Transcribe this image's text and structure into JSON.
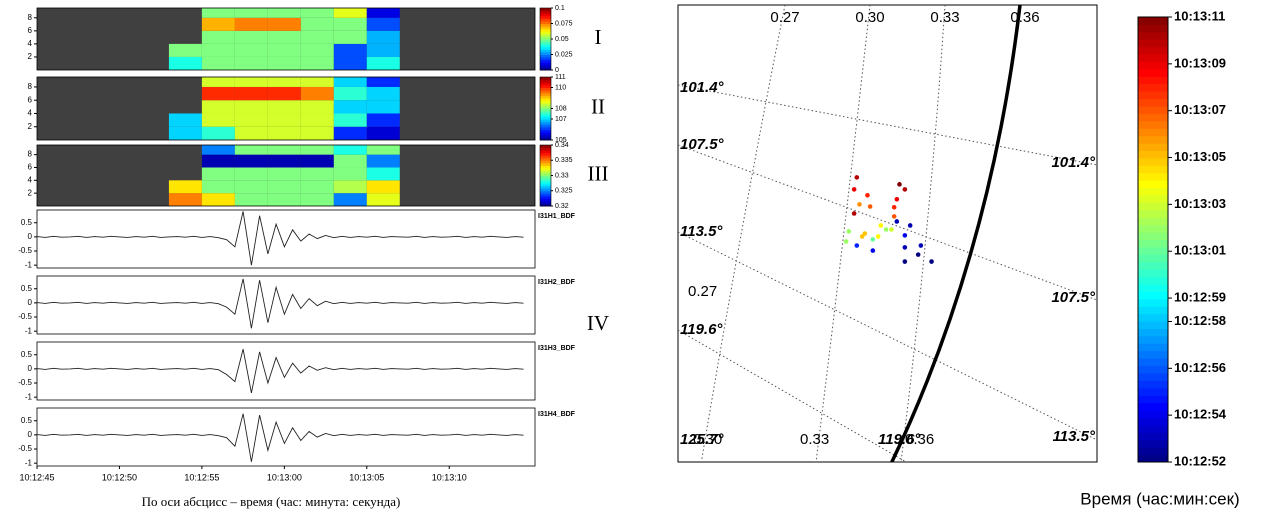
{
  "chart_data": [
    {
      "type": "heatmap",
      "annotation": "I",
      "xlim": [
        45,
        75.2
      ],
      "ylim": [
        0,
        9.5
      ],
      "yticks": [
        2,
        4,
        6,
        8
      ],
      "x_bins": [
        45,
        47,
        49,
        51,
        53,
        55,
        57,
        59,
        61,
        63,
        65,
        67,
        69,
        71,
        73,
        75
      ],
      "y_bins": [
        0,
        2,
        4,
        6,
        8,
        9.5
      ],
      "clim": [
        0,
        0.1
      ],
      "cticks": [
        0,
        0.025,
        0.05,
        0.075,
        0.1
      ],
      "values": [
        [
          null,
          null,
          null,
          null,
          0.04,
          0.05,
          0.05,
          0.05,
          0.05,
          0.02,
          0.04,
          null,
          null,
          null,
          null
        ],
        [
          null,
          null,
          null,
          null,
          0.05,
          0.05,
          0.05,
          0.05,
          0.05,
          0.02,
          0.03,
          null,
          null,
          null,
          null
        ],
        [
          null,
          null,
          null,
          null,
          null,
          0.05,
          0.05,
          0.05,
          0.05,
          0.05,
          0.03,
          null,
          null,
          null,
          null
        ],
        [
          null,
          null,
          null,
          null,
          null,
          0.07,
          0.075,
          0.075,
          0.05,
          0.05,
          0.02,
          null,
          null,
          null,
          null
        ],
        [
          null,
          null,
          null,
          null,
          null,
          0.05,
          0.05,
          0.05,
          0.05,
          0.06,
          0.01,
          null,
          null,
          null,
          null
        ]
      ]
    },
    {
      "type": "heatmap",
      "annotation": "II",
      "xlim": [
        45,
        75.2
      ],
      "ylim": [
        0,
        9.5
      ],
      "yticks": [
        2,
        4,
        6,
        8
      ],
      "x_bins": [
        45,
        47,
        49,
        51,
        53,
        55,
        57,
        59,
        61,
        63,
        65,
        67,
        69,
        71,
        73,
        75
      ],
      "y_bins": [
        0,
        2,
        4,
        6,
        8,
        9.5
      ],
      "clim": [
        105,
        111
      ],
      "cticks": [
        105,
        107,
        108,
        110,
        111
      ],
      "values": [
        [
          null,
          null,
          null,
          null,
          107,
          107.5,
          108.5,
          108.5,
          108.5,
          106,
          105.5,
          null,
          null,
          null,
          null
        ],
        [
          null,
          null,
          null,
          null,
          107,
          108.5,
          108.5,
          108.5,
          108.5,
          107.5,
          106,
          null,
          null,
          null,
          null
        ],
        [
          null,
          null,
          null,
          null,
          null,
          108.5,
          108.5,
          108.5,
          108.5,
          107,
          107,
          null,
          null,
          null,
          null
        ],
        [
          null,
          null,
          null,
          null,
          null,
          110,
          110,
          110,
          109.5,
          107.5,
          107,
          null,
          null,
          null,
          null
        ],
        [
          null,
          null,
          null,
          null,
          null,
          108.5,
          108.5,
          108.5,
          108.5,
          107,
          106,
          null,
          null,
          null,
          null
        ]
      ]
    },
    {
      "type": "heatmap",
      "annotation": "III",
      "xlim": [
        45,
        75.2
      ],
      "ylim": [
        0,
        9.5
      ],
      "yticks": [
        2,
        4,
        6,
        8
      ],
      "x_bins": [
        45,
        47,
        49,
        51,
        53,
        55,
        57,
        59,
        61,
        63,
        65,
        67,
        69,
        71,
        73,
        75
      ],
      "y_bins": [
        0,
        2,
        4,
        6,
        8,
        9.5
      ],
      "clim": [
        0.32,
        0.34
      ],
      "cticks": [
        0.32,
        0.325,
        0.33,
        0.335,
        0.34
      ],
      "values": [
        [
          null,
          null,
          null,
          null,
          0.335,
          0.333,
          0.33,
          0.33,
          0.33,
          0.325,
          0.332,
          null,
          null,
          null,
          null
        ],
        [
          null,
          null,
          null,
          null,
          0.333,
          0.33,
          0.33,
          0.33,
          0.33,
          0.331,
          0.333,
          null,
          null,
          null,
          null
        ],
        [
          null,
          null,
          null,
          null,
          null,
          0.33,
          0.33,
          0.33,
          0.33,
          0.33,
          0.328,
          null,
          null,
          null,
          null
        ],
        [
          null,
          null,
          null,
          null,
          null,
          0.321,
          0.321,
          0.321,
          0.321,
          0.33,
          0.325,
          null,
          null,
          null,
          null
        ],
        [
          null,
          null,
          null,
          null,
          null,
          0.325,
          0.33,
          0.33,
          0.33,
          0.328,
          0.33,
          null,
          null,
          null,
          null
        ]
      ]
    },
    {
      "type": "line",
      "name": "I31H1_BDF",
      "xlim": [
        45,
        75.2
      ],
      "ylim": [
        -1.1,
        0.95
      ],
      "yticks": [
        0.5,
        0,
        -0.5,
        -1
      ],
      "color": "#222222",
      "x": [
        45,
        45.5,
        46,
        46.5,
        47,
        47.5,
        48,
        48.5,
        49,
        49.5,
        50,
        50.5,
        51,
        51.5,
        52,
        52.5,
        53,
        53.5,
        54,
        54.5,
        55,
        55.5,
        56,
        56.5,
        57,
        57.5,
        58,
        58.5,
        59,
        59.5,
        60,
        60.5,
        61,
        61.5,
        62,
        62.5,
        63,
        63.5,
        64,
        64.5,
        65,
        65.5,
        66,
        66.5,
        67,
        67.5,
        68,
        68.5,
        69,
        69.5,
        70,
        70.5,
        71,
        71.5,
        72,
        72.5,
        73,
        73.5,
        74,
        74.5
      ],
      "values": [
        0.01,
        -0.02,
        0.02,
        -0.01,
        0,
        0.02,
        -0.02,
        0.01,
        -0.01,
        0.02,
        0,
        -0.02,
        0.01,
        -0.01,
        0.02,
        -0.02,
        0,
        0.01,
        -0.01,
        0.02,
        -0.02,
        0.01,
        -0.03,
        -0.1,
        -0.35,
        0.9,
        -1.0,
        0.75,
        -0.6,
        0.45,
        -0.35,
        0.25,
        -0.15,
        0.1,
        -0.06,
        0.05,
        -0.03,
        0.02,
        -0.02,
        0.01,
        -0.01,
        0.02,
        -0.02,
        0.01,
        0,
        -0.01,
        0.02,
        -0.02,
        0.01,
        -0.01,
        0,
        0.02,
        -0.02,
        0.01,
        -0.01,
        0.02,
        0,
        -0.02,
        0.01,
        -0.01
      ]
    },
    {
      "type": "line",
      "name": "I31H2_BDF",
      "annotation": "IV",
      "xlim": [
        45,
        75.2
      ],
      "ylim": [
        -1.1,
        0.95
      ],
      "yticks": [
        0.5,
        0,
        -0.5,
        -1
      ],
      "color": "#222222",
      "x": [
        45,
        45.5,
        46,
        46.5,
        47,
        47.5,
        48,
        48.5,
        49,
        49.5,
        50,
        50.5,
        51,
        51.5,
        52,
        52.5,
        53,
        53.5,
        54,
        54.5,
        55,
        55.5,
        56,
        56.5,
        57,
        57.5,
        58,
        58.5,
        59,
        59.5,
        60,
        60.5,
        61,
        61.5,
        62,
        62.5,
        63,
        63.5,
        64,
        64.5,
        65,
        65.5,
        66,
        66.5,
        67,
        67.5,
        68,
        68.5,
        69,
        69.5,
        70,
        70.5,
        71,
        71.5,
        72,
        72.5,
        73,
        73.5,
        74,
        74.5
      ],
      "values": [
        0.01,
        -0.02,
        0.02,
        -0.01,
        0,
        0.02,
        -0.02,
        0.01,
        -0.01,
        0.02,
        0,
        -0.02,
        0.01,
        -0.01,
        0.02,
        -0.02,
        0,
        0.01,
        -0.01,
        0.02,
        -0.02,
        0.01,
        -0.03,
        -0.15,
        -0.4,
        0.85,
        -0.9,
        0.8,
        -0.7,
        0.55,
        -0.4,
        0.3,
        -0.2,
        0.15,
        -0.1,
        0.06,
        -0.03,
        0.02,
        -0.02,
        0.01,
        -0.01,
        0.02,
        -0.02,
        0.01,
        0,
        -0.01,
        0.02,
        -0.02,
        0.01,
        -0.01,
        0,
        0.02,
        -0.02,
        0.01,
        -0.01,
        0.02,
        0,
        -0.02,
        0.01,
        -0.01
      ]
    },
    {
      "type": "line",
      "name": "I31H3_BDF",
      "xlim": [
        45,
        75.2
      ],
      "ylim": [
        -1.1,
        0.95
      ],
      "yticks": [
        0.5,
        0,
        -0.5,
        -1
      ],
      "color": "#222222",
      "x": [
        45,
        45.5,
        46,
        46.5,
        47,
        47.5,
        48,
        48.5,
        49,
        49.5,
        50,
        50.5,
        51,
        51.5,
        52,
        52.5,
        53,
        53.5,
        54,
        54.5,
        55,
        55.5,
        56,
        56.5,
        57,
        57.5,
        58,
        58.5,
        59,
        59.5,
        60,
        60.5,
        61,
        61.5,
        62,
        62.5,
        63,
        63.5,
        64,
        64.5,
        65,
        65.5,
        66,
        66.5,
        67,
        67.5,
        68,
        68.5,
        69,
        69.5,
        70,
        70.5,
        71,
        71.5,
        72,
        72.5,
        73,
        73.5,
        74,
        74.5
      ],
      "values": [
        0.01,
        -0.02,
        0.02,
        -0.01,
        0,
        0.02,
        -0.02,
        0.01,
        -0.01,
        0.02,
        0,
        -0.02,
        0.01,
        -0.01,
        0.02,
        -0.02,
        0,
        0.01,
        -0.01,
        0.02,
        -0.02,
        0.01,
        -0.03,
        -0.2,
        -0.45,
        0.7,
        -0.85,
        0.6,
        -0.5,
        0.4,
        -0.3,
        0.2,
        -0.15,
        0.1,
        -0.05,
        0.04,
        -0.03,
        0.02,
        -0.02,
        0.01,
        -0.01,
        0.02,
        -0.02,
        0.01,
        0,
        -0.01,
        0.02,
        -0.02,
        0.01,
        -0.01,
        0,
        0.02,
        -0.02,
        0.01,
        -0.01,
        0.02,
        0,
        -0.02,
        0.01,
        -0.01
      ]
    },
    {
      "type": "line",
      "name": "I31H4_BDF",
      "xlim": [
        45,
        75.2
      ],
      "ylim": [
        -1.1,
        0.95
      ],
      "yticks": [
        0.5,
        0,
        -0.5,
        -1
      ],
      "color": "#222222",
      "xticks": [
        {
          "value": 45,
          "label": "10:12:45"
        },
        {
          "value": 50,
          "label": "10:12:50"
        },
        {
          "value": 55,
          "label": "10:12:55"
        },
        {
          "value": 60,
          "label": "10:13:00"
        },
        {
          "value": 65,
          "label": "10:13:05"
        },
        {
          "value": 70,
          "label": "10:13:10"
        }
      ],
      "xlabel": "По оси абсцисс – время (час: минута: секунда)",
      "x": [
        45,
        45.5,
        46,
        46.5,
        47,
        47.5,
        48,
        48.5,
        49,
        49.5,
        50,
        50.5,
        51,
        51.5,
        52,
        52.5,
        53,
        53.5,
        54,
        54.5,
        55,
        55.5,
        56,
        56.5,
        57,
        57.5,
        58,
        58.5,
        59,
        59.5,
        60,
        60.5,
        61,
        61.5,
        62,
        62.5,
        63,
        63.5,
        64,
        64.5,
        65,
        65.5,
        66,
        66.5,
        67,
        67.5,
        68,
        68.5,
        69,
        69.5,
        70,
        70.5,
        71,
        71.5,
        72,
        72.5,
        73,
        73.5,
        74,
        74.5
      ],
      "values": [
        0.01,
        -0.02,
        0.02,
        -0.01,
        0,
        0.02,
        -0.02,
        0.01,
        -0.01,
        0.02,
        0,
        -0.02,
        0.01,
        -0.01,
        0.02,
        -0.02,
        0,
        0.01,
        -0.01,
        0.02,
        -0.02,
        0.01,
        -0.03,
        -0.1,
        -0.4,
        0.75,
        -0.95,
        0.7,
        -0.55,
        0.45,
        -0.3,
        0.25,
        -0.2,
        0.12,
        -0.08,
        0.05,
        -0.03,
        0.02,
        -0.02,
        0.01,
        -0.01,
        0.02,
        -0.02,
        0.01,
        0,
        -0.01,
        0.02,
        -0.02,
        0.01,
        -0.01,
        0,
        0.02,
        -0.02,
        0.01,
        -0.01,
        0.02,
        0,
        -0.02,
        0.01,
        -0.01
      ]
    },
    {
      "type": "scatter",
      "xlim": [
        0.23,
        0.387
      ],
      "ylim": [
        0,
        0.171
      ],
      "grid_labels": [
        "0.27",
        "0.30",
        "0.33",
        "0.36",
        "101.4°",
        "107.5°",
        "113.5°",
        "119.6°",
        "125.7°",
        "0.27",
        "0.30",
        "0.33",
        "119.6°",
        "0.36",
        "101.4°",
        "107.5°",
        "113.5°"
      ],
      "x": [
        0.297,
        0.296,
        0.301,
        0.302,
        0.296,
        0.313,
        0.315,
        0.312,
        0.311,
        0.311,
        0.298,
        0.3,
        0.299,
        0.306,
        0.31,
        0.305,
        0.294,
        0.293,
        0.308,
        0.303,
        0.297,
        0.303,
        0.312,
        0.317,
        0.315,
        0.315,
        0.321,
        0.32,
        0.325,
        0.315
      ],
      "y": [
        0.1065,
        0.102,
        0.0998,
        0.0956,
        0.093,
        0.1039,
        0.102,
        0.0983,
        0.0953,
        0.0919,
        0.0964,
        0.0855,
        0.0844,
        0.0885,
        0.087,
        0.0844,
        0.0863,
        0.0825,
        0.087,
        0.0833,
        0.081,
        0.0791,
        0.09,
        0.0885,
        0.0848,
        0.0803,
        0.081,
        0.0776,
        0.075,
        0.075
      ],
      "c": [
        70,
        69,
        68,
        67,
        70,
        71,
        70,
        69,
        68,
        67,
        66,
        65,
        65,
        64,
        63,
        64,
        62,
        62,
        62,
        61,
        55,
        54,
        53,
        53,
        54,
        53,
        53,
        52,
        52,
        52
      ],
      "clim": [
        52,
        71
      ],
      "cticks": [
        {
          "value": 52,
          "label": "10:12:52"
        },
        {
          "value": 54,
          "label": "10:12:54"
        },
        {
          "value": 56,
          "label": "10:12:56"
        },
        {
          "value": 58,
          "label": "10:12:58"
        },
        {
          "value": 59,
          "label": "10:12:59"
        },
        {
          "value": 61,
          "label": "10:13:01"
        },
        {
          "value": 63,
          "label": "10:13:03"
        },
        {
          "value": 65,
          "label": "10:13:05"
        },
        {
          "value": 67,
          "label": "10:13:07"
        },
        {
          "value": 69,
          "label": "10:13:09"
        },
        {
          "value": 71,
          "label": "10:13:11"
        }
      ],
      "colorbar_label": "Время (час:мин:сек)"
    }
  ]
}
